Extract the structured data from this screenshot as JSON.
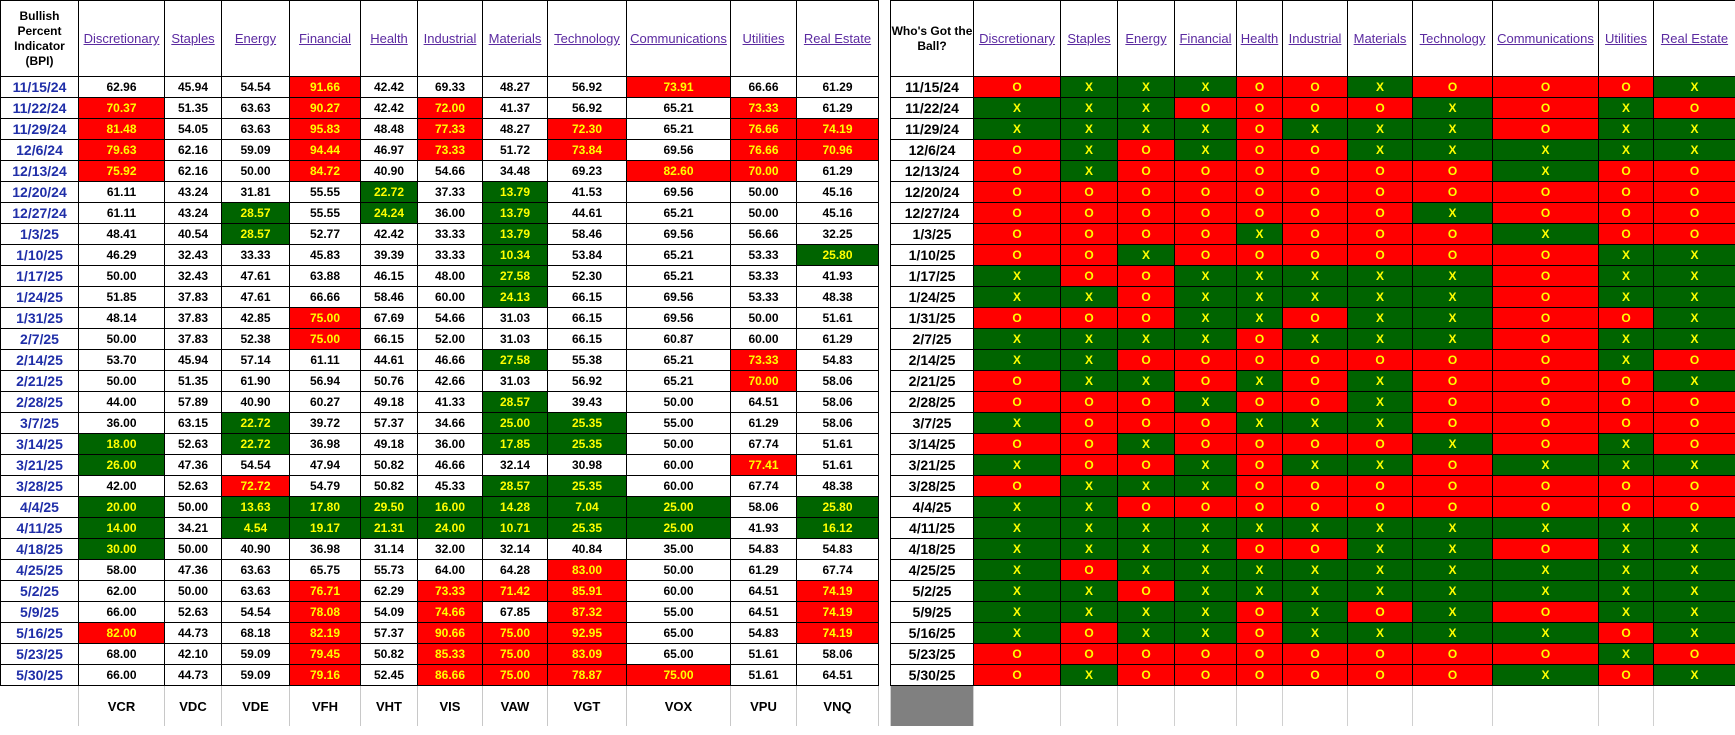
{
  "left_header": "Bullish Percent Indicator (BPI)",
  "right_header": "Who's Got the Ball?",
  "categories": [
    "Discretionary",
    "Staples",
    "Energy",
    "Financial",
    "Health",
    "Industrial",
    "Materials",
    "Technology",
    "Communications",
    "Utilities",
    "Real Estate"
  ],
  "tickers": [
    "VCR",
    "VDC",
    "VDE",
    "VFH",
    "VHT",
    "VIS",
    "VAW",
    "VGT",
    "VOX",
    "VPU",
    "VNQ"
  ],
  "colors": {
    "red": "#ff0000",
    "green": "#006400",
    "cell_text_highlight": "#ffff00",
    "date_text": "#1f2ea8",
    "header_link": "#5b2aa0"
  },
  "bpi_rows": [
    {
      "date": "11/15/24",
      "values": [
        "62.96",
        "45.94",
        "54.54",
        "91.66",
        "42.42",
        "69.33",
        "48.27",
        "56.92",
        "73.91",
        "66.66",
        "61.29"
      ],
      "flags": [
        "",
        "",
        "",
        "r",
        "",
        "",
        "",
        "",
        "r",
        "",
        ""
      ]
    },
    {
      "date": "11/22/24",
      "values": [
        "70.37",
        "51.35",
        "63.63",
        "90.27",
        "42.42",
        "72.00",
        "41.37",
        "56.92",
        "65.21",
        "73.33",
        "61.29"
      ],
      "flags": [
        "r",
        "",
        "",
        "r",
        "",
        "r",
        "",
        "",
        "",
        "r",
        ""
      ]
    },
    {
      "date": "11/29/24",
      "values": [
        "81.48",
        "54.05",
        "63.63",
        "95.83",
        "48.48",
        "77.33",
        "48.27",
        "72.30",
        "65.21",
        "76.66",
        "74.19"
      ],
      "flags": [
        "r",
        "",
        "",
        "r",
        "",
        "r",
        "",
        "r",
        "",
        "r",
        "r"
      ]
    },
    {
      "date": "12/6/24",
      "values": [
        "79.63",
        "62.16",
        "59.09",
        "94.44",
        "46.97",
        "73.33",
        "51.72",
        "73.84",
        "69.56",
        "76.66",
        "70.96"
      ],
      "flags": [
        "r",
        "",
        "",
        "r",
        "",
        "r",
        "",
        "r",
        "",
        "r",
        "r"
      ]
    },
    {
      "date": "12/13/24",
      "values": [
        "75.92",
        "62.16",
        "50.00",
        "84.72",
        "40.90",
        "54.66",
        "34.48",
        "69.23",
        "82.60",
        "70.00",
        "61.29"
      ],
      "flags": [
        "r",
        "",
        "",
        "r",
        "",
        "",
        "",
        "",
        "r",
        "r",
        ""
      ]
    },
    {
      "date": "12/20/24",
      "values": [
        "61.11",
        "43.24",
        "31.81",
        "55.55",
        "22.72",
        "37.33",
        "13.79",
        "41.53",
        "69.56",
        "50.00",
        "45.16"
      ],
      "flags": [
        "",
        "",
        "",
        "",
        "g",
        "",
        "g",
        "",
        "",
        "",
        ""
      ]
    },
    {
      "date": "12/27/24",
      "values": [
        "61.11",
        "43.24",
        "28.57",
        "55.55",
        "24.24",
        "36.00",
        "13.79",
        "44.61",
        "65.21",
        "50.00",
        "45.16"
      ],
      "flags": [
        "",
        "",
        "g",
        "",
        "g",
        "",
        "g",
        "",
        "",
        "",
        ""
      ]
    },
    {
      "date": "1/3/25",
      "values": [
        "48.41",
        "40.54",
        "28.57",
        "52.77",
        "42.42",
        "33.33",
        "13.79",
        "58.46",
        "69.56",
        "56.66",
        "32.25"
      ],
      "flags": [
        "",
        "",
        "g",
        "",
        "",
        "",
        "g",
        "",
        "",
        "",
        ""
      ]
    },
    {
      "date": "1/10/25",
      "values": [
        "46.29",
        "32.43",
        "33.33",
        "45.83",
        "39.39",
        "33.33",
        "10.34",
        "53.84",
        "65.21",
        "53.33",
        "25.80"
      ],
      "flags": [
        "",
        "",
        "",
        "",
        "",
        "",
        "g",
        "",
        "",
        "",
        "g"
      ]
    },
    {
      "date": "1/17/25",
      "values": [
        "50.00",
        "32.43",
        "47.61",
        "63.88",
        "46.15",
        "48.00",
        "27.58",
        "52.30",
        "65.21",
        "53.33",
        "41.93"
      ],
      "flags": [
        "",
        "",
        "",
        "",
        "",
        "",
        "g",
        "",
        "",
        "",
        ""
      ]
    },
    {
      "date": "1/24/25",
      "values": [
        "51.85",
        "37.83",
        "47.61",
        "66.66",
        "58.46",
        "60.00",
        "24.13",
        "66.15",
        "69.56",
        "53.33",
        "48.38"
      ],
      "flags": [
        "",
        "",
        "",
        "",
        "",
        "",
        "g",
        "",
        "",
        "",
        ""
      ]
    },
    {
      "date": "1/31/25",
      "values": [
        "48.14",
        "37.83",
        "42.85",
        "75.00",
        "67.69",
        "54.66",
        "31.03",
        "66.15",
        "69.56",
        "50.00",
        "51.61"
      ],
      "flags": [
        "",
        "",
        "",
        "r",
        "",
        "",
        "",
        "",
        "",
        "",
        ""
      ]
    },
    {
      "date": "2/7/25",
      "values": [
        "50.00",
        "37.83",
        "52.38",
        "75.00",
        "66.15",
        "52.00",
        "31.03",
        "66.15",
        "60.87",
        "60.00",
        "61.29"
      ],
      "flags": [
        "",
        "",
        "",
        "r",
        "",
        "",
        "",
        "",
        "",
        "",
        ""
      ]
    },
    {
      "date": "2/14/25",
      "values": [
        "53.70",
        "45.94",
        "57.14",
        "61.11",
        "44.61",
        "46.66",
        "27.58",
        "55.38",
        "65.21",
        "73.33",
        "54.83"
      ],
      "flags": [
        "",
        "",
        "",
        "",
        "",
        "",
        "g",
        "",
        "",
        "r",
        ""
      ]
    },
    {
      "date": "2/21/25",
      "values": [
        "50.00",
        "51.35",
        "61.90",
        "56.94",
        "50.76",
        "42.66",
        "31.03",
        "56.92",
        "65.21",
        "70.00",
        "58.06"
      ],
      "flags": [
        "",
        "",
        "",
        "",
        "",
        "",
        "",
        "",
        "",
        "r",
        ""
      ]
    },
    {
      "date": "2/28/25",
      "values": [
        "44.00",
        "57.89",
        "40.90",
        "60.27",
        "49.18",
        "41.33",
        "28.57",
        "39.43",
        "50.00",
        "64.51",
        "58.06"
      ],
      "flags": [
        "",
        "",
        "",
        "",
        "",
        "",
        "g",
        "",
        "",
        "",
        ""
      ]
    },
    {
      "date": "3/7/25",
      "values": [
        "36.00",
        "63.15",
        "22.72",
        "39.72",
        "57.37",
        "34.66",
        "25.00",
        "25.35",
        "55.00",
        "61.29",
        "58.06"
      ],
      "flags": [
        "",
        "",
        "g",
        "",
        "",
        "",
        "g",
        "g",
        "",
        "",
        ""
      ]
    },
    {
      "date": "3/14/25",
      "values": [
        "18.00",
        "52.63",
        "22.72",
        "36.98",
        "49.18",
        "36.00",
        "17.85",
        "25.35",
        "50.00",
        "67.74",
        "51.61"
      ],
      "flags": [
        "g",
        "",
        "g",
        "",
        "",
        "",
        "g",
        "g",
        "",
        "",
        ""
      ]
    },
    {
      "date": "3/21/25",
      "values": [
        "26.00",
        "47.36",
        "54.54",
        "47.94",
        "50.82",
        "46.66",
        "32.14",
        "30.98",
        "60.00",
        "77.41",
        "51.61"
      ],
      "flags": [
        "g",
        "",
        "",
        "",
        "",
        "",
        "",
        "",
        "",
        "r",
        ""
      ]
    },
    {
      "date": "3/28/25",
      "values": [
        "42.00",
        "52.63",
        "72.72",
        "54.79",
        "50.82",
        "45.33",
        "28.57",
        "25.35",
        "60.00",
        "67.74",
        "48.38"
      ],
      "flags": [
        "",
        "",
        "r",
        "",
        "",
        "",
        "g",
        "g",
        "",
        "",
        ""
      ]
    },
    {
      "date": "4/4/25",
      "values": [
        "20.00",
        "50.00",
        "13.63",
        "17.80",
        "29.50",
        "16.00",
        "14.28",
        "7.04",
        "25.00",
        "58.06",
        "25.80"
      ],
      "flags": [
        "g",
        "",
        "g",
        "g",
        "g",
        "g",
        "g",
        "g",
        "g",
        "",
        "g"
      ]
    },
    {
      "date": "4/11/25",
      "values": [
        "14.00",
        "34.21",
        "4.54",
        "19.17",
        "21.31",
        "24.00",
        "10.71",
        "25.35",
        "25.00",
        "41.93",
        "16.12"
      ],
      "flags": [
        "g",
        "",
        "g",
        "g",
        "g",
        "g",
        "g",
        "g",
        "g",
        "",
        "g"
      ]
    },
    {
      "date": "4/18/25",
      "values": [
        "30.00",
        "50.00",
        "40.90",
        "36.98",
        "31.14",
        "32.00",
        "32.14",
        "40.84",
        "35.00",
        "54.83",
        "54.83"
      ],
      "flags": [
        "g",
        "",
        "",
        "",
        "",
        "",
        "",
        "",
        "",
        "",
        ""
      ]
    },
    {
      "date": "4/25/25",
      "values": [
        "58.00",
        "47.36",
        "63.63",
        "65.75",
        "55.73",
        "64.00",
        "64.28",
        "83.00",
        "50.00",
        "61.29",
        "67.74"
      ],
      "flags": [
        "",
        "",
        "",
        "",
        "",
        "",
        "",
        "r",
        "",
        "",
        ""
      ]
    },
    {
      "date": "5/2/25",
      "values": [
        "62.00",
        "50.00",
        "63.63",
        "76.71",
        "62.29",
        "73.33",
        "71.42",
        "85.91",
        "60.00",
        "64.51",
        "74.19"
      ],
      "flags": [
        "",
        "",
        "",
        "r",
        "",
        "r",
        "r",
        "r",
        "",
        "",
        "r"
      ]
    },
    {
      "date": "5/9/25",
      "values": [
        "66.00",
        "52.63",
        "54.54",
        "78.08",
        "54.09",
        "74.66",
        "67.85",
        "87.32",
        "55.00",
        "64.51",
        "74.19"
      ],
      "flags": [
        "",
        "",
        "",
        "r",
        "",
        "r",
        "",
        "r",
        "",
        "",
        "r"
      ]
    },
    {
      "date": "5/16/25",
      "values": [
        "82.00",
        "44.73",
        "68.18",
        "82.19",
        "57.37",
        "90.66",
        "75.00",
        "92.95",
        "65.00",
        "54.83",
        "74.19"
      ],
      "flags": [
        "r",
        "",
        "",
        "r",
        "",
        "r",
        "r",
        "r",
        "",
        "",
        "r"
      ]
    },
    {
      "date": "5/23/25",
      "values": [
        "68.00",
        "42.10",
        "59.09",
        "79.45",
        "50.82",
        "85.33",
        "75.00",
        "83.09",
        "65.00",
        "51.61",
        "58.06"
      ],
      "flags": [
        "",
        "",
        "",
        "r",
        "",
        "r",
        "r",
        "r",
        "",
        "",
        ""
      ]
    },
    {
      "date": "5/30/25",
      "values": [
        "66.00",
        "44.73",
        "59.09",
        "79.16",
        "52.45",
        "86.66",
        "75.00",
        "78.87",
        "75.00",
        "51.61",
        "64.51"
      ],
      "flags": [
        "",
        "",
        "",
        "r",
        "",
        "r",
        "r",
        "r",
        "r",
        "",
        ""
      ]
    }
  ],
  "ball_rows": [
    {
      "date": "11/15/24",
      "marks": [
        "O",
        "X",
        "X",
        "X",
        "O",
        "O",
        "X",
        "O",
        "O",
        "O",
        "X"
      ]
    },
    {
      "date": "11/22/24",
      "marks": [
        "X",
        "X",
        "X",
        "O",
        "O",
        "O",
        "O",
        "X",
        "O",
        "X",
        "O"
      ]
    },
    {
      "date": "11/29/24",
      "marks": [
        "X",
        "X",
        "X",
        "X",
        "O",
        "X",
        "X",
        "X",
        "O",
        "X",
        "X"
      ]
    },
    {
      "date": "12/6/24",
      "marks": [
        "O",
        "X",
        "O",
        "X",
        "O",
        "O",
        "X",
        "X",
        "X",
        "X",
        "X"
      ]
    },
    {
      "date": "12/13/24",
      "marks": [
        "O",
        "X",
        "O",
        "O",
        "O",
        "O",
        "O",
        "O",
        "X",
        "O",
        "O"
      ]
    },
    {
      "date": "12/20/24",
      "marks": [
        "O",
        "O",
        "O",
        "O",
        "O",
        "O",
        "O",
        "O",
        "O",
        "O",
        "O"
      ]
    },
    {
      "date": "12/27/24",
      "marks": [
        "O",
        "O",
        "O",
        "O",
        "O",
        "O",
        "O",
        "X",
        "O",
        "O",
        "O"
      ]
    },
    {
      "date": "1/3/25",
      "marks": [
        "O",
        "O",
        "O",
        "O",
        "X",
        "O",
        "O",
        "O",
        "X",
        "O",
        "O"
      ]
    },
    {
      "date": "1/10/25",
      "marks": [
        "O",
        "O",
        "X",
        "O",
        "O",
        "O",
        "O",
        "O",
        "O",
        "X",
        "X"
      ]
    },
    {
      "date": "1/17/25",
      "marks": [
        "X",
        "O",
        "O",
        "X",
        "X",
        "X",
        "X",
        "X",
        "O",
        "X",
        "X"
      ]
    },
    {
      "date": "1/24/25",
      "marks": [
        "X",
        "X",
        "O",
        "X",
        "X",
        "X",
        "X",
        "X",
        "O",
        "X",
        "X"
      ]
    },
    {
      "date": "1/31/25",
      "marks": [
        "O",
        "O",
        "O",
        "X",
        "X",
        "O",
        "X",
        "X",
        "O",
        "O",
        "X"
      ]
    },
    {
      "date": "2/7/25",
      "marks": [
        "X",
        "X",
        "X",
        "X",
        "O",
        "X",
        "X",
        "X",
        "O",
        "X",
        "X"
      ]
    },
    {
      "date": "2/14/25",
      "marks": [
        "X",
        "X",
        "O",
        "O",
        "O",
        "O",
        "O",
        "O",
        "O",
        "X",
        "O"
      ]
    },
    {
      "date": "2/21/25",
      "marks": [
        "O",
        "X",
        "X",
        "O",
        "X",
        "O",
        "X",
        "O",
        "O",
        "O",
        "X"
      ]
    },
    {
      "date": "2/28/25",
      "marks": [
        "O",
        "O",
        "O",
        "X",
        "O",
        "O",
        "X",
        "O",
        "O",
        "O",
        "O"
      ]
    },
    {
      "date": "3/7/25",
      "marks": [
        "X",
        "O",
        "O",
        "O",
        "X",
        "X",
        "X",
        "O",
        "O",
        "O",
        "O"
      ]
    },
    {
      "date": "3/14/25",
      "marks": [
        "O",
        "O",
        "X",
        "O",
        "O",
        "O",
        "O",
        "X",
        "O",
        "X",
        "O"
      ]
    },
    {
      "date": "3/21/25",
      "marks": [
        "X",
        "O",
        "O",
        "X",
        "O",
        "X",
        "X",
        "O",
        "X",
        "X",
        "X"
      ]
    },
    {
      "date": "3/28/25",
      "marks": [
        "O",
        "X",
        "X",
        "X",
        "O",
        "O",
        "O",
        "O",
        "O",
        "O",
        "O"
      ]
    },
    {
      "date": "4/4/25",
      "marks": [
        "X",
        "X",
        "O",
        "O",
        "O",
        "O",
        "O",
        "O",
        "O",
        "O",
        "O"
      ]
    },
    {
      "date": "4/11/25",
      "marks": [
        "X",
        "X",
        "X",
        "X",
        "X",
        "X",
        "X",
        "X",
        "X",
        "X",
        "X"
      ]
    },
    {
      "date": "4/18/25",
      "marks": [
        "X",
        "X",
        "X",
        "X",
        "O",
        "O",
        "X",
        "X",
        "O",
        "X",
        "X"
      ]
    },
    {
      "date": "4/25/25",
      "marks": [
        "X",
        "O",
        "X",
        "X",
        "X",
        "X",
        "X",
        "X",
        "X",
        "X",
        "X"
      ]
    },
    {
      "date": "5/2/25",
      "marks": [
        "X",
        "X",
        "O",
        "X",
        "X",
        "X",
        "X",
        "X",
        "X",
        "X",
        "X"
      ]
    },
    {
      "date": "5/9/25",
      "marks": [
        "X",
        "X",
        "X",
        "X",
        "O",
        "X",
        "O",
        "X",
        "O",
        "X",
        "X"
      ]
    },
    {
      "date": "5/16/25",
      "marks": [
        "X",
        "O",
        "X",
        "X",
        "O",
        "X",
        "X",
        "X",
        "X",
        "O",
        "X"
      ]
    },
    {
      "date": "5/23/25",
      "marks": [
        "O",
        "O",
        "O",
        "O",
        "O",
        "O",
        "O",
        "O",
        "O",
        "X",
        "O"
      ]
    },
    {
      "date": "5/30/25",
      "marks": [
        "O",
        "X",
        "O",
        "O",
        "O",
        "O",
        "O",
        "O",
        "X",
        "O",
        "X"
      ]
    }
  ]
}
